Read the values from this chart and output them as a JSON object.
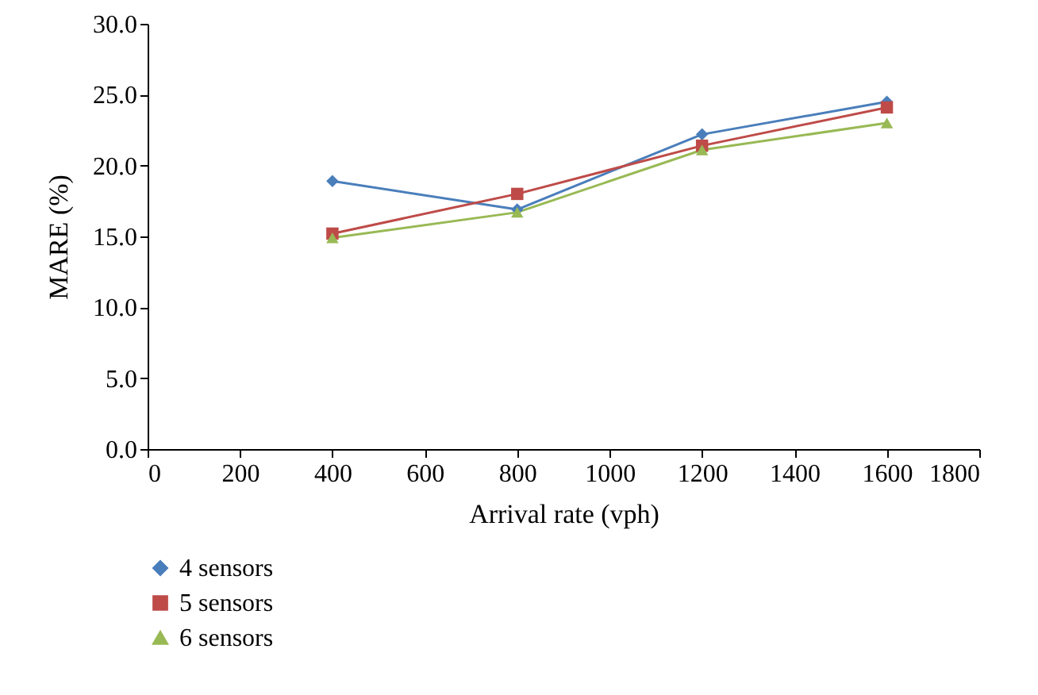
{
  "chart_data": {
    "type": "line",
    "xlabel": "Arrival rate (vph)",
    "ylabel": "MARE (%)",
    "x": [
      400,
      800,
      1200,
      1600
    ],
    "series": [
      {
        "name": "4 sensors",
        "color": "#4a7ebb",
        "marker": "diamond",
        "values": [
          18.9,
          16.9,
          22.2,
          24.5
        ]
      },
      {
        "name": "5 sensors",
        "color": "#be4b48",
        "marker": "square",
        "values": [
          15.2,
          18.0,
          21.4,
          24.1
        ]
      },
      {
        "name": "6 sensors",
        "color": "#98b954",
        "marker": "triangle",
        "values": [
          14.9,
          16.7,
          21.1,
          23.0
        ]
      }
    ],
    "xlim": [
      0,
      1800
    ],
    "xticks": [
      0,
      200,
      400,
      600,
      800,
      1000,
      1200,
      1400,
      1600,
      1800
    ],
    "ylim": [
      0,
      30
    ],
    "yticks": [
      {
        "value": 0,
        "label": "0.0"
      },
      {
        "value": 5,
        "label": "5.0"
      },
      {
        "value": 10,
        "label": "10.0"
      },
      {
        "value": 15,
        "label": "15.0"
      },
      {
        "value": 20,
        "label": "20.0"
      },
      {
        "value": 25,
        "label": "25.0"
      },
      {
        "value": 30,
        "label": "30.0"
      }
    ],
    "grid": false,
    "legend": "bottom left",
    "line_style": "solid"
  }
}
